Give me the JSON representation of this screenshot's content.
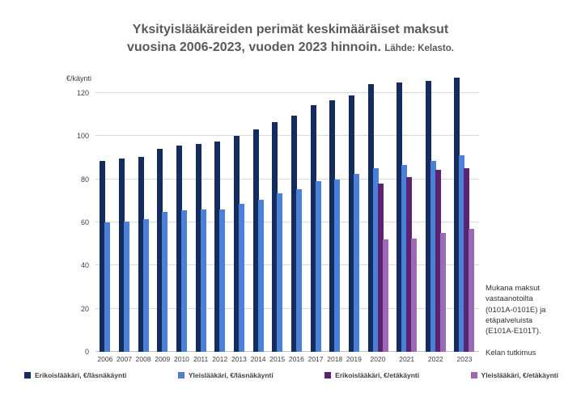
{
  "title": {
    "line1": "Yksityislääkäreiden perimät keskimääräiset maksut",
    "line2": "vuosina 2006-2023, vuoden 2023 hinnoin.",
    "source": "Lähde: Kelasto."
  },
  "y_axis": {
    "unit_label": "€/käynti",
    "ticks": [
      0,
      20,
      40,
      60,
      80,
      100,
      120
    ]
  },
  "annotation": {
    "text": "Mukana maksut\nvastaanotoilta\n(0101A-0101E) ja\netäpalveluista\n(E101A-E101T).",
    "footer": "Kelan tutkimus"
  },
  "colors": {
    "specialist_presence": "#152C5E",
    "gp_presence": "#4A81D7",
    "specialist_remote": "#5B2472",
    "gp_remote": "#9C69B4",
    "title_text": "#595959",
    "axis_text": "#404040",
    "gridline": "#D9D9D9"
  },
  "legend": [
    {
      "label": "Erikoislääkäri, €/läsnäkäynti",
      "color": "#152C5E"
    },
    {
      "label": "Yleislääkäri, €/läsnäkäynti",
      "color": "#4A81D7"
    },
    {
      "label": "Erikoislääkäri, €/etäkäynti",
      "color": "#5B2472"
    },
    {
      "label": "Yleislääkäri, €/etäkäynti",
      "color": "#9C69B4"
    }
  ],
  "chart_data": {
    "type": "bar",
    "title": "Yksityislääkäreiden perimät keskimääräiset maksut vuosina 2006-2023, vuoden 2023 hinnoin. Lähde: Kelasto.",
    "xlabel": "",
    "ylabel": "€/käynti",
    "ylim": [
      0,
      130
    ],
    "grid": true,
    "legend_position": "bottom",
    "categories": [
      "2006",
      "2007",
      "2008",
      "2009",
      "2010",
      "2011",
      "2012",
      "2013",
      "2014",
      "2015",
      "2016",
      "2017",
      "2018",
      "2019",
      "2020",
      "2021",
      "2022",
      "2023"
    ],
    "series": [
      {
        "name": "Erikoislääkäri, €/läsnäkäynti",
        "color": "#152C5E",
        "values": [
          88.5,
          89.5,
          90.5,
          94,
          95.5,
          96.5,
          97.5,
          100,
          103,
          106.5,
          109.5,
          114.5,
          116.5,
          119,
          124,
          125,
          125.5,
          127
        ]
      },
      {
        "name": "Yleislääkäri, €/läsnäkäynti",
        "color": "#4A81D7",
        "values": [
          60,
          60.5,
          61.5,
          65,
          65.5,
          66,
          66,
          68.5,
          70.5,
          73.5,
          75.5,
          79,
          80,
          82.5,
          85,
          86.5,
          88.5,
          91
        ]
      },
      {
        "name": "Erikoislääkäri, €/etäkäynti",
        "color": "#5B2472",
        "values": [
          null,
          null,
          null,
          null,
          null,
          null,
          null,
          null,
          null,
          null,
          null,
          null,
          null,
          null,
          78,
          81,
          84.5,
          85
        ]
      },
      {
        "name": "Yleislääkäri, €/etäkäynti",
        "color": "#9C69B4",
        "values": [
          null,
          null,
          null,
          null,
          null,
          null,
          null,
          null,
          null,
          null,
          null,
          null,
          null,
          null,
          52,
          52.5,
          55,
          57
        ]
      }
    ]
  }
}
